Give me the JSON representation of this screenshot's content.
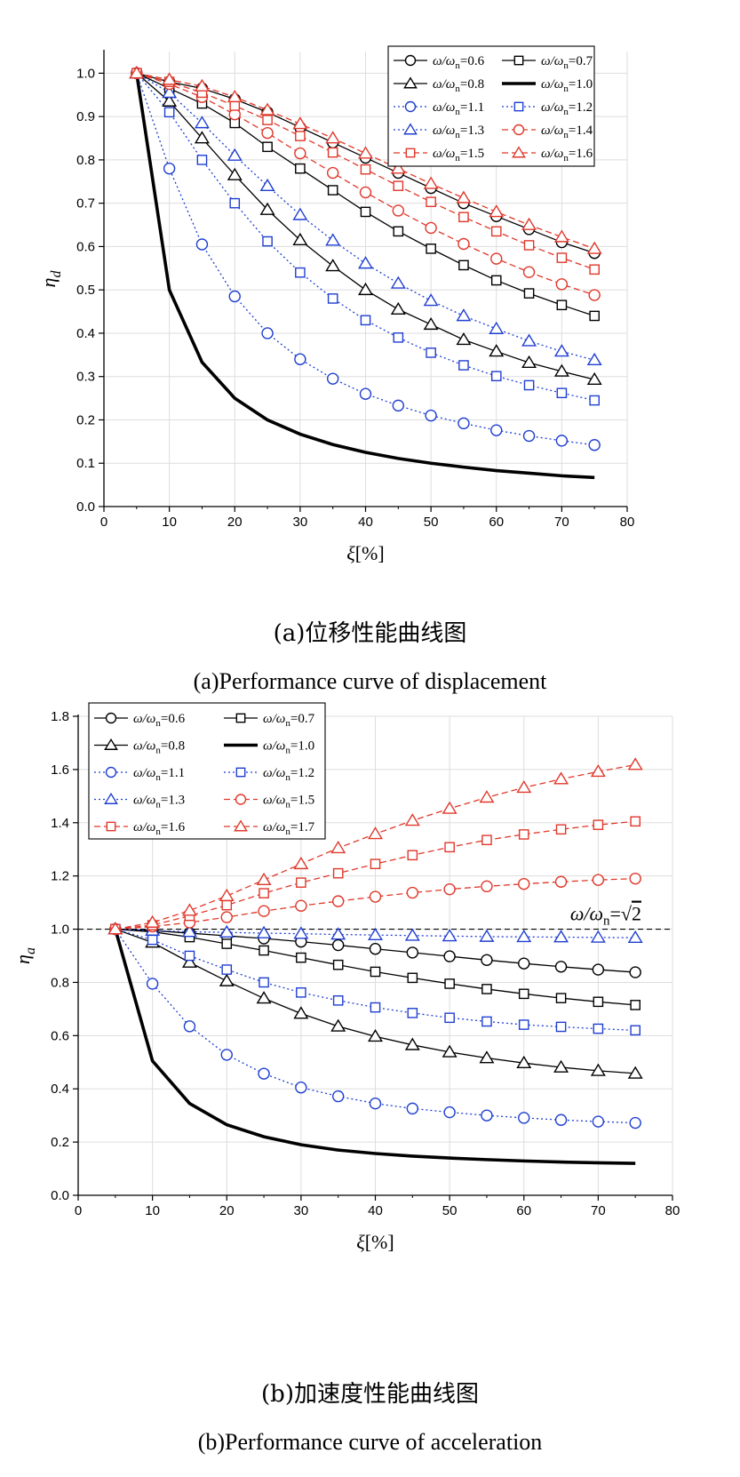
{
  "colors": {
    "black": "#000000",
    "blue": "#1f3fd1",
    "red": "#e0382b",
    "grid": "#dddddd"
  },
  "captions": {
    "a_zh": "(a)位移性能曲线图",
    "a_en": "(a)Performance curve of displacement",
    "b_zh": "(b)加速度性能曲线图",
    "b_en": "(b)Performance curve of acceleration"
  },
  "chart_data": [
    {
      "type": "line",
      "xlabel": "ξ[%]",
      "ylabel": "η_d",
      "xlim": [
        0,
        80
      ],
      "ylim": [
        0,
        1.05
      ],
      "xticks": [
        0,
        10,
        20,
        30,
        40,
        50,
        60,
        70,
        80
      ],
      "yticks": [
        0.0,
        0.1,
        0.2,
        0.3,
        0.4,
        0.5,
        0.6,
        0.7,
        0.8,
        0.9,
        1.0
      ],
      "grid": true,
      "legend_position": "top-right",
      "x": [
        5,
        10,
        15,
        20,
        25,
        30,
        35,
        40,
        45,
        50,
        55,
        60,
        65,
        70,
        75
      ],
      "series": [
        {
          "name": "ω/ωn=0.6",
          "marker": "circle",
          "color": "#000000",
          "dash": "solid",
          "values": [
            1.0,
            0.98,
            0.965,
            0.94,
            0.91,
            0.875,
            0.84,
            0.805,
            0.77,
            0.735,
            0.7,
            0.67,
            0.64,
            0.61,
            0.585
          ]
        },
        {
          "name": "ω/ωn=0.7",
          "marker": "square",
          "color": "#000000",
          "dash": "solid",
          "values": [
            1.0,
            0.965,
            0.93,
            0.885,
            0.83,
            0.78,
            0.73,
            0.68,
            0.635,
            0.595,
            0.557,
            0.522,
            0.492,
            0.465,
            0.44
          ]
        },
        {
          "name": "ω/ωn=0.8",
          "marker": "triangle",
          "color": "#000000",
          "dash": "solid",
          "values": [
            1.0,
            0.935,
            0.85,
            0.765,
            0.685,
            0.615,
            0.555,
            0.5,
            0.455,
            0.42,
            0.385,
            0.358,
            0.332,
            0.312,
            0.293
          ]
        },
        {
          "name": "ω/ωn=1.0",
          "marker": "none",
          "color": "#000000",
          "dash": "thick",
          "values": [
            1.0,
            0.5,
            0.333,
            0.25,
            0.2,
            0.167,
            0.143,
            0.125,
            0.111,
            0.1,
            0.091,
            0.083,
            0.077,
            0.071,
            0.067
          ]
        },
        {
          "name": "ω/ωn=1.1",
          "marker": "circle",
          "color": "#1f3fd1",
          "dash": "dotted",
          "values": [
            1.0,
            0.78,
            0.605,
            0.485,
            0.4,
            0.34,
            0.295,
            0.26,
            0.233,
            0.21,
            0.192,
            0.176,
            0.163,
            0.152,
            0.142
          ]
        },
        {
          "name": "ω/ωn=1.2",
          "marker": "square",
          "color": "#1f3fd1",
          "dash": "dotted",
          "values": [
            1.0,
            0.91,
            0.8,
            0.7,
            0.612,
            0.54,
            0.48,
            0.43,
            0.39,
            0.355,
            0.326,
            0.301,
            0.28,
            0.262,
            0.245
          ]
        },
        {
          "name": "ω/ωn=1.3",
          "marker": "triangle",
          "color": "#1f3fd1",
          "dash": "dotted",
          "values": [
            1.0,
            0.955,
            0.885,
            0.81,
            0.74,
            0.673,
            0.614,
            0.561,
            0.515,
            0.475,
            0.44,
            0.41,
            0.382,
            0.358,
            0.338
          ]
        },
        {
          "name": "ω/ωn=1.4",
          "marker": "circle",
          "color": "#e0382b",
          "dash": "dashed",
          "values": [
            1.0,
            0.975,
            0.945,
            0.905,
            0.862,
            0.815,
            0.77,
            0.725,
            0.683,
            0.643,
            0.606,
            0.572,
            0.541,
            0.513,
            0.488
          ]
        },
        {
          "name": "ω/ωn=1.5",
          "marker": "square",
          "color": "#e0382b",
          "dash": "dashed",
          "values": [
            1.0,
            0.98,
            0.955,
            0.925,
            0.892,
            0.855,
            0.817,
            0.778,
            0.74,
            0.703,
            0.668,
            0.635,
            0.603,
            0.574,
            0.547
          ]
        },
        {
          "name": "ω/ωn=1.6",
          "marker": "triangle",
          "color": "#e0382b",
          "dash": "dashed",
          "values": [
            1.0,
            0.985,
            0.97,
            0.945,
            0.915,
            0.883,
            0.85,
            0.815,
            0.78,
            0.745,
            0.712,
            0.68,
            0.65,
            0.622,
            0.595
          ]
        }
      ]
    },
    {
      "type": "line",
      "xlabel": "ξ[%]",
      "ylabel": "η_a",
      "xlim": [
        0,
        80
      ],
      "ylim": [
        0,
        1.8
      ],
      "xticks": [
        0,
        10,
        20,
        30,
        40,
        50,
        60,
        70,
        80
      ],
      "yticks": [
        0.0,
        0.2,
        0.4,
        0.6,
        0.8,
        1.0,
        1.2,
        1.4,
        1.6,
        1.8
      ],
      "grid": true,
      "legend_position": "top-left",
      "annotation": "ω/ωn=√2",
      "reference_line": 1.0,
      "x": [
        5,
        10,
        15,
        20,
        25,
        30,
        35,
        40,
        45,
        50,
        55,
        60,
        65,
        70,
        75
      ],
      "series": [
        {
          "name": "ω/ωn=0.6",
          "marker": "circle",
          "color": "#000000",
          "dash": "solid",
          "values": [
            1.0,
            0.995,
            0.985,
            0.975,
            0.965,
            0.953,
            0.94,
            0.926,
            0.912,
            0.898,
            0.884,
            0.871,
            0.859,
            0.848,
            0.838
          ]
        },
        {
          "name": "ω/ωn=0.7",
          "marker": "square",
          "color": "#000000",
          "dash": "solid",
          "values": [
            1.0,
            0.99,
            0.97,
            0.945,
            0.92,
            0.893,
            0.866,
            0.84,
            0.817,
            0.795,
            0.775,
            0.757,
            0.741,
            0.727,
            0.715
          ]
        },
        {
          "name": "ω/ωn=0.8",
          "marker": "triangle",
          "color": "#000000",
          "dash": "solid",
          "values": [
            1.0,
            0.95,
            0.875,
            0.805,
            0.74,
            0.683,
            0.635,
            0.597,
            0.565,
            0.538,
            0.516,
            0.497,
            0.481,
            0.468,
            0.458
          ]
        },
        {
          "name": "ω/ωn=1.0",
          "marker": "none",
          "color": "#000000",
          "dash": "thick",
          "values": [
            1.0,
            0.505,
            0.345,
            0.265,
            0.22,
            0.19,
            0.17,
            0.157,
            0.147,
            0.14,
            0.134,
            0.129,
            0.125,
            0.122,
            0.12
          ]
        },
        {
          "name": "ω/ωn=1.1",
          "marker": "circle",
          "color": "#1f3fd1",
          "dash": "dotted",
          "values": [
            1.0,
            0.795,
            0.635,
            0.528,
            0.457,
            0.405,
            0.372,
            0.345,
            0.326,
            0.312,
            0.3,
            0.291,
            0.283,
            0.277,
            0.272
          ]
        },
        {
          "name": "ω/ωn=1.2",
          "marker": "square",
          "color": "#1f3fd1",
          "dash": "dotted",
          "values": [
            1.0,
            0.96,
            0.9,
            0.848,
            0.8,
            0.762,
            0.732,
            0.706,
            0.685,
            0.667,
            0.653,
            0.641,
            0.633,
            0.626,
            0.62
          ]
        },
        {
          "name": "ω/ωn=1.3",
          "marker": "triangle",
          "color": "#1f3fd1",
          "dash": "dotted",
          "values": [
            1.0,
            0.995,
            0.99,
            0.988,
            0.985,
            0.983,
            0.98,
            0.978,
            0.976,
            0.974,
            0.972,
            0.971,
            0.97,
            0.969,
            0.968
          ]
        },
        {
          "name": "ω/ωn=1.5",
          "marker": "circle",
          "color": "#e0382b",
          "dash": "dashed",
          "values": [
            1.0,
            1.01,
            1.025,
            1.045,
            1.068,
            1.088,
            1.105,
            1.122,
            1.137,
            1.15,
            1.161,
            1.17,
            1.178,
            1.185,
            1.19
          ]
        },
        {
          "name": "ω/ωn=1.6",
          "marker": "square",
          "color": "#e0382b",
          "dash": "dashed",
          "values": [
            1.0,
            1.015,
            1.05,
            1.09,
            1.135,
            1.175,
            1.21,
            1.245,
            1.278,
            1.308,
            1.335,
            1.356,
            1.375,
            1.392,
            1.405
          ]
        },
        {
          "name": "ω/ωn=1.7",
          "marker": "triangle",
          "color": "#e0382b",
          "dash": "dashed",
          "values": [
            1.0,
            1.025,
            1.07,
            1.125,
            1.185,
            1.245,
            1.305,
            1.358,
            1.408,
            1.453,
            1.495,
            1.532,
            1.564,
            1.592,
            1.618
          ]
        }
      ]
    }
  ]
}
